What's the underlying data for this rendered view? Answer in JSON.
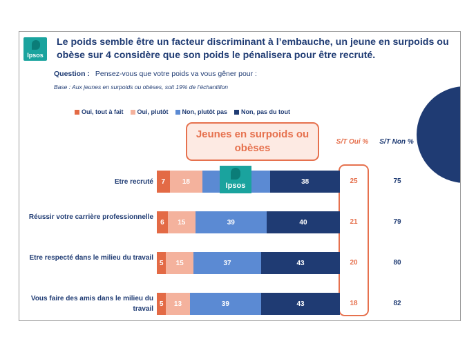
{
  "slide": {
    "title": "Le poids semble être un facteur discriminant à l’embauche, un jeune en surpoids ou obèse sur 4 considère que son poids le pénalisera pour être recruté.",
    "question_label": "Question :",
    "question_text": "Pensez-vous que votre poids va vous gêner pour :",
    "base": "Base : Aux jeunes en surpoids ou obèses, soit 19% de l’échantillon",
    "logo_text": "Ipsos",
    "group_label": "Jeunes en surpoids ou obèses",
    "col_oui": "S/T Oui %",
    "col_non": "S/T Non %"
  },
  "colors": {
    "oui_tout_a_fait": "#e36a45",
    "oui_plutot": "#f4b29d",
    "non_plutot_pas": "#5b8ad3",
    "non_pas_du_tout": "#1f3b73",
    "accent": "#e6714e"
  },
  "chart_data": {
    "type": "bar",
    "orientation": "horizontal",
    "stacked": true,
    "categories": [
      "Etre recruté",
      "Réussir votre carrière professionnelle",
      "Etre respecté dans le milieu du travail",
      "Vous faire des amis dans le milieu du travail"
    ],
    "series": [
      {
        "name": "Oui, tout à fait",
        "values": [
          7,
          6,
          5,
          5
        ]
      },
      {
        "name": "Oui, plutôt",
        "values": [
          18,
          15,
          15,
          13
        ]
      },
      {
        "name": "Non, plutôt pas",
        "values": [
          37,
          39,
          37,
          39
        ]
      },
      {
        "name": "Non, pas du tout",
        "values": [
          38,
          40,
          43,
          43
        ]
      }
    ],
    "st_oui": [
      25,
      21,
      20,
      18
    ],
    "st_non": [
      75,
      79,
      80,
      82
    ],
    "title": "Jeunes en surpoids ou obèses",
    "legend_position": "top-left",
    "xlim": [
      0,
      100
    ]
  }
}
